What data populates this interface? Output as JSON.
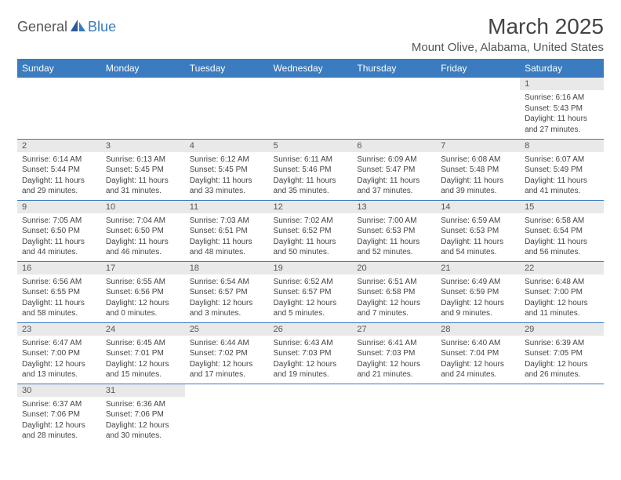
{
  "logo": {
    "text1": "General",
    "text2": "Blue"
  },
  "title": "March 2025",
  "location": "Mount Olive, Alabama, United States",
  "colors": {
    "header_bg": "#3b7bbf",
    "daynum_bg": "#e9e9e9",
    "border": "#3b7bbf"
  },
  "weekdays": [
    "Sunday",
    "Monday",
    "Tuesday",
    "Wednesday",
    "Thursday",
    "Friday",
    "Saturday"
  ],
  "weeks": [
    [
      null,
      null,
      null,
      null,
      null,
      null,
      {
        "n": "1",
        "sr": "6:16 AM",
        "ss": "5:43 PM",
        "dl": "11 hours and 27 minutes."
      }
    ],
    [
      {
        "n": "2",
        "sr": "6:14 AM",
        "ss": "5:44 PM",
        "dl": "11 hours and 29 minutes."
      },
      {
        "n": "3",
        "sr": "6:13 AM",
        "ss": "5:45 PM",
        "dl": "11 hours and 31 minutes."
      },
      {
        "n": "4",
        "sr": "6:12 AM",
        "ss": "5:45 PM",
        "dl": "11 hours and 33 minutes."
      },
      {
        "n": "5",
        "sr": "6:11 AM",
        "ss": "5:46 PM",
        "dl": "11 hours and 35 minutes."
      },
      {
        "n": "6",
        "sr": "6:09 AM",
        "ss": "5:47 PM",
        "dl": "11 hours and 37 minutes."
      },
      {
        "n": "7",
        "sr": "6:08 AM",
        "ss": "5:48 PM",
        "dl": "11 hours and 39 minutes."
      },
      {
        "n": "8",
        "sr": "6:07 AM",
        "ss": "5:49 PM",
        "dl": "11 hours and 41 minutes."
      }
    ],
    [
      {
        "n": "9",
        "sr": "7:05 AM",
        "ss": "6:50 PM",
        "dl": "11 hours and 44 minutes."
      },
      {
        "n": "10",
        "sr": "7:04 AM",
        "ss": "6:50 PM",
        "dl": "11 hours and 46 minutes."
      },
      {
        "n": "11",
        "sr": "7:03 AM",
        "ss": "6:51 PM",
        "dl": "11 hours and 48 minutes."
      },
      {
        "n": "12",
        "sr": "7:02 AM",
        "ss": "6:52 PM",
        "dl": "11 hours and 50 minutes."
      },
      {
        "n": "13",
        "sr": "7:00 AM",
        "ss": "6:53 PM",
        "dl": "11 hours and 52 minutes."
      },
      {
        "n": "14",
        "sr": "6:59 AM",
        "ss": "6:53 PM",
        "dl": "11 hours and 54 minutes."
      },
      {
        "n": "15",
        "sr": "6:58 AM",
        "ss": "6:54 PM",
        "dl": "11 hours and 56 minutes."
      }
    ],
    [
      {
        "n": "16",
        "sr": "6:56 AM",
        "ss": "6:55 PM",
        "dl": "11 hours and 58 minutes."
      },
      {
        "n": "17",
        "sr": "6:55 AM",
        "ss": "6:56 PM",
        "dl": "12 hours and 0 minutes."
      },
      {
        "n": "18",
        "sr": "6:54 AM",
        "ss": "6:57 PM",
        "dl": "12 hours and 3 minutes."
      },
      {
        "n": "19",
        "sr": "6:52 AM",
        "ss": "6:57 PM",
        "dl": "12 hours and 5 minutes."
      },
      {
        "n": "20",
        "sr": "6:51 AM",
        "ss": "6:58 PM",
        "dl": "12 hours and 7 minutes."
      },
      {
        "n": "21",
        "sr": "6:49 AM",
        "ss": "6:59 PM",
        "dl": "12 hours and 9 minutes."
      },
      {
        "n": "22",
        "sr": "6:48 AM",
        "ss": "7:00 PM",
        "dl": "12 hours and 11 minutes."
      }
    ],
    [
      {
        "n": "23",
        "sr": "6:47 AM",
        "ss": "7:00 PM",
        "dl": "12 hours and 13 minutes."
      },
      {
        "n": "24",
        "sr": "6:45 AM",
        "ss": "7:01 PM",
        "dl": "12 hours and 15 minutes."
      },
      {
        "n": "25",
        "sr": "6:44 AM",
        "ss": "7:02 PM",
        "dl": "12 hours and 17 minutes."
      },
      {
        "n": "26",
        "sr": "6:43 AM",
        "ss": "7:03 PM",
        "dl": "12 hours and 19 minutes."
      },
      {
        "n": "27",
        "sr": "6:41 AM",
        "ss": "7:03 PM",
        "dl": "12 hours and 21 minutes."
      },
      {
        "n": "28",
        "sr": "6:40 AM",
        "ss": "7:04 PM",
        "dl": "12 hours and 24 minutes."
      },
      {
        "n": "29",
        "sr": "6:39 AM",
        "ss": "7:05 PM",
        "dl": "12 hours and 26 minutes."
      }
    ],
    [
      {
        "n": "30",
        "sr": "6:37 AM",
        "ss": "7:06 PM",
        "dl": "12 hours and 28 minutes."
      },
      {
        "n": "31",
        "sr": "6:36 AM",
        "ss": "7:06 PM",
        "dl": "12 hours and 30 minutes."
      },
      null,
      null,
      null,
      null,
      null
    ]
  ],
  "labels": {
    "sunrise": "Sunrise:",
    "sunset": "Sunset:",
    "daylight": "Daylight:"
  }
}
